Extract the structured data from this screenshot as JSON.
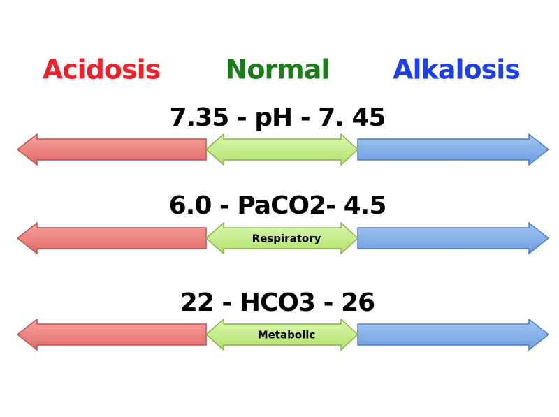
{
  "headings": [
    {
      "text": "Acidosis"
    },
    {
      "text": "Normal"
    },
    {
      "text": "Alkalosis"
    }
  ],
  "rows": [
    {
      "label": "7.35 - pH - 7. 45"
    },
    {
      "label": "6.0 - PaCO2- 4.5",
      "tag": "Respiratory"
    },
    {
      "label": "22 - HCO3 - 26",
      "tag": "Metabolic"
    }
  ]
}
